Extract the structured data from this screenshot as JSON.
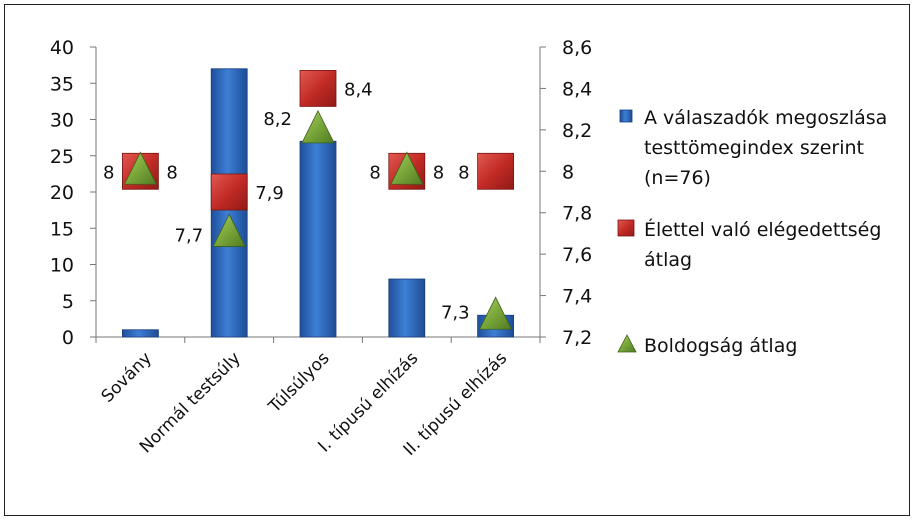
{
  "chart_data": {
    "type": "bar",
    "categories": [
      "Sovány",
      "Normál testsúly",
      "Túlsúlyos",
      "I. típusú elhízás",
      "II. típusú elhízás"
    ],
    "series": [
      {
        "name": "A válaszadók megoszlása testtömegindex szerint (n=76)",
        "type": "bar",
        "axis": "left",
        "color": "#2b65b8",
        "values": [
          1,
          37,
          27,
          8,
          3
        ]
      },
      {
        "name": "Élettel való elégedettség átlag",
        "type": "marker-square",
        "axis": "right",
        "color": "#c8302c",
        "values": [
          8,
          7.9,
          8.4,
          8,
          8
        ],
        "labels": [
          "8",
          "7,9",
          "8,4",
          "8",
          "8"
        ]
      },
      {
        "name": "Boldogság átlag",
        "type": "marker-triangle",
        "axis": "right",
        "color": "#7aa73a",
        "values": [
          8,
          7.7,
          8.2,
          8,
          7.3
        ],
        "labels": [
          "8",
          "7,7",
          "8,2",
          "8",
          "7,3"
        ]
      }
    ],
    "left_axis": {
      "min": 0,
      "max": 40,
      "ticks": [
        "0",
        "5",
        "10",
        "15",
        "20",
        "25",
        "30",
        "35",
        "40"
      ]
    },
    "right_axis": {
      "min": 7.2,
      "max": 8.6,
      "ticks": [
        "7,2",
        "7,4",
        "7,6",
        "7,8",
        "8",
        "8,2",
        "8,4",
        "8,6"
      ]
    },
    "legend": {
      "placement": "right",
      "entries": [
        {
          "lines": [
            "A válaszadók megoszlása",
            "testtömegindex szerint",
            "(n=76)"
          ]
        },
        {
          "lines": [
            "Élettel való elégedettség",
            "átlag"
          ]
        },
        {
          "lines": [
            "Boldogság átlag"
          ]
        }
      ]
    }
  }
}
